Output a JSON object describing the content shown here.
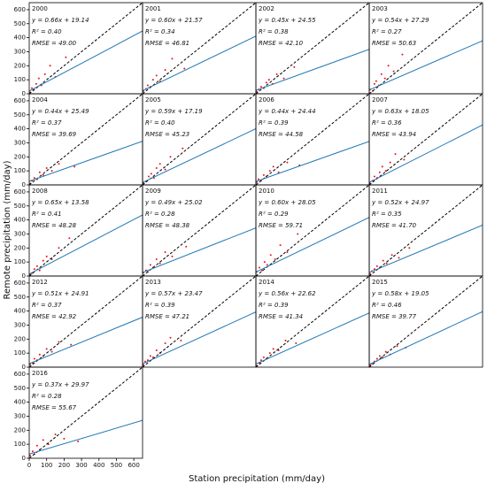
{
  "x_label": "Station precipitation (mm/day)",
  "y_label": "Remote precipitation (mm/day)",
  "chart_data": [
    {
      "type": "scatter",
      "title": "2000",
      "equation": "y = 0.66x + 19.14",
      "r2": "R² = 0.40",
      "rmse": "RMSE = 49.00",
      "slope": 0.66,
      "intercept": 19.14,
      "xlim": [
        0,
        650
      ],
      "ylim": [
        0,
        650
      ],
      "yticks": [
        0,
        100,
        200,
        300,
        400,
        500,
        600
      ],
      "x": [
        5,
        15,
        25,
        40,
        55,
        70,
        90,
        120,
        150,
        210
      ],
      "y": [
        10,
        40,
        30,
        70,
        110,
        60,
        140,
        200,
        120,
        260
      ]
    },
    {
      "type": "scatter",
      "title": "2001",
      "equation": "y = 0.60x + 21.57",
      "r2": "R² = 0.34",
      "rmse": "RMSE = 46.81",
      "slope": 0.6,
      "intercept": 21.57,
      "xlim": [
        0,
        650
      ],
      "ylim": [
        0,
        650
      ],
      "x": [
        5,
        20,
        30,
        45,
        60,
        80,
        100,
        130,
        170,
        240
      ],
      "y": [
        20,
        35,
        60,
        50,
        100,
        130,
        90,
        170,
        250,
        180
      ]
    },
    {
      "type": "scatter",
      "title": "2002",
      "equation": "y = 0.45x + 24.55",
      "r2": "R² = 0.38",
      "rmse": "RMSE = 42.10",
      "slope": 0.45,
      "intercept": 24.55,
      "xlim": [
        0,
        650
      ],
      "ylim": [
        0,
        650
      ],
      "x": [
        5,
        15,
        30,
        45,
        60,
        75,
        95,
        120,
        160,
        220
      ],
      "y": [
        15,
        30,
        50,
        40,
        80,
        100,
        70,
        140,
        110,
        190
      ]
    },
    {
      "type": "scatter",
      "title": "2003",
      "equation": "y = 0.54x + 27.29",
      "r2": "R² = 0.27",
      "rmse": "RMSE = 50.63",
      "slope": 0.54,
      "intercept": 27.29,
      "xlim": [
        0,
        650
      ],
      "ylim": [
        0,
        650
      ],
      "x": [
        5,
        20,
        30,
        40,
        55,
        70,
        90,
        110,
        140,
        190
      ],
      "y": [
        30,
        20,
        70,
        90,
        60,
        140,
        110,
        200,
        160,
        280
      ]
    },
    {
      "type": "scatter",
      "title": "2004",
      "equation": "y = 0.44x + 25.49",
      "r2": "R² = 0.37",
      "rmse": "RMSE = 39.69",
      "slope": 0.44,
      "intercept": 25.49,
      "xlim": [
        0,
        650
      ],
      "ylim": [
        0,
        650
      ],
      "yticks": [
        0,
        100,
        200,
        300,
        400,
        500,
        600
      ],
      "x": [
        5,
        15,
        30,
        45,
        60,
        80,
        100,
        130,
        170,
        260
      ],
      "y": [
        10,
        30,
        50,
        40,
        90,
        70,
        120,
        100,
        150,
        130
      ]
    },
    {
      "type": "scatter",
      "title": "2005",
      "equation": "y = 0.59x + 17.19",
      "r2": "R² = 0.40",
      "rmse": "RMSE = 45.23",
      "slope": 0.59,
      "intercept": 17.19,
      "xlim": [
        0,
        650
      ],
      "ylim": [
        0,
        650
      ],
      "x": [
        5,
        20,
        35,
        50,
        65,
        80,
        100,
        130,
        160,
        230
      ],
      "y": [
        15,
        25,
        60,
        80,
        50,
        120,
        150,
        110,
        200,
        260
      ]
    },
    {
      "type": "scatter",
      "title": "2006",
      "equation": "y = 0.44x + 24.44",
      "r2": "R² = 0.39",
      "rmse": "RMSE = 44.58",
      "slope": 0.44,
      "intercept": 24.44,
      "xlim": [
        0,
        650
      ],
      "ylim": [
        0,
        650
      ],
      "x": [
        5,
        15,
        30,
        45,
        60,
        80,
        100,
        130,
        180,
        250
      ],
      "y": [
        20,
        40,
        30,
        70,
        60,
        100,
        130,
        90,
        160,
        140
      ]
    },
    {
      "type": "scatter",
      "title": "2007",
      "equation": "y = 0.63x + 18.05",
      "r2": "R² = 0.36",
      "rmse": "RMSE = 43.94",
      "slope": 0.63,
      "intercept": 18.05,
      "xlim": [
        0,
        650
      ],
      "ylim": [
        0,
        650
      ],
      "x": [
        5,
        20,
        30,
        45,
        60,
        75,
        95,
        120,
        150,
        200
      ],
      "y": [
        10,
        30,
        60,
        50,
        90,
        130,
        100,
        160,
        220,
        180
      ]
    },
    {
      "type": "scatter",
      "title": "2008",
      "equation": "y = 0.65x + 13.58",
      "r2": "R² = 0.41",
      "rmse": "RMSE = 48.28",
      "slope": 0.65,
      "intercept": 13.58,
      "xlim": [
        0,
        650
      ],
      "ylim": [
        0,
        650
      ],
      "yticks": [
        0,
        100,
        200,
        300,
        400,
        500,
        600
      ],
      "x": [
        5,
        15,
        30,
        45,
        60,
        80,
        100,
        130,
        170,
        230
      ],
      "y": [
        10,
        20,
        50,
        70,
        40,
        110,
        140,
        120,
        200,
        270
      ]
    },
    {
      "type": "scatter",
      "title": "2009",
      "equation": "y = 0.49x + 25.02",
      "r2": "R² = 0.28",
      "rmse": "RMSE = 48.38",
      "slope": 0.49,
      "intercept": 25.02,
      "xlim": [
        0,
        650
      ],
      "ylim": [
        0,
        650
      ],
      "x": [
        5,
        20,
        30,
        45,
        60,
        80,
        100,
        130,
        170,
        250
      ],
      "y": [
        25,
        40,
        30,
        80,
        60,
        120,
        90,
        170,
        140,
        210
      ]
    },
    {
      "type": "scatter",
      "title": "2010",
      "equation": "y = 0.60x + 28.05",
      "r2": "R² = 0.29",
      "rmse": "RMSE = 59.71",
      "slope": 0.6,
      "intercept": 28.05,
      "xlim": [
        0,
        650
      ],
      "ylim": [
        0,
        650
      ],
      "x": [
        5,
        20,
        35,
        50,
        65,
        85,
        110,
        140,
        180,
        240
      ],
      "y": [
        30,
        60,
        40,
        100,
        80,
        150,
        120,
        220,
        170,
        300
      ]
    },
    {
      "type": "scatter",
      "title": "2011",
      "equation": "y = 0.52x + 24.97",
      "r2": "R² = 0.35",
      "rmse": "RMSE = 41.70",
      "slope": 0.52,
      "intercept": 24.97,
      "xlim": [
        0,
        650
      ],
      "ylim": [
        0,
        650
      ],
      "x": [
        5,
        15,
        30,
        45,
        60,
        80,
        100,
        130,
        170,
        230
      ],
      "y": [
        15,
        35,
        50,
        70,
        60,
        110,
        90,
        150,
        130,
        200
      ]
    },
    {
      "type": "scatter",
      "title": "2012",
      "equation": "y = 0.51x + 24.91",
      "r2": "R² = 0.37",
      "rmse": "RMSE = 42.92",
      "slope": 0.51,
      "intercept": 24.91,
      "xlim": [
        0,
        650
      ],
      "ylim": [
        0,
        650
      ],
      "yticks": [
        0,
        100,
        200,
        300,
        400,
        500,
        600
      ],
      "x": [
        5,
        20,
        30,
        45,
        60,
        80,
        100,
        130,
        170,
        240
      ],
      "y": [
        20,
        30,
        60,
        50,
        90,
        80,
        130,
        110,
        180,
        160
      ]
    },
    {
      "type": "scatter",
      "title": "2013",
      "equation": "y = 0.57x + 23.47",
      "r2": "R² = 0.39",
      "rmse": "RMSE = 47.21",
      "slope": 0.57,
      "intercept": 23.47,
      "xlim": [
        0,
        650
      ],
      "ylim": [
        0,
        650
      ],
      "x": [
        5,
        15,
        30,
        45,
        60,
        80,
        100,
        130,
        160,
        220
      ],
      "y": [
        15,
        40,
        50,
        80,
        70,
        120,
        100,
        170,
        210,
        190
      ]
    },
    {
      "type": "scatter",
      "title": "2014",
      "equation": "y = 0.56x + 22.62",
      "r2": "R² = 0.39",
      "rmse": "RMSE = 41.34",
      "slope": 0.56,
      "intercept": 22.62,
      "xlim": [
        0,
        650
      ],
      "ylim": [
        0,
        650
      ],
      "x": [
        5,
        20,
        30,
        45,
        60,
        80,
        100,
        130,
        170,
        230
      ],
      "y": [
        10,
        30,
        50,
        70,
        60,
        100,
        130,
        120,
        190,
        170
      ]
    },
    {
      "type": "scatter",
      "title": "2015",
      "equation": "y = 0.58x + 19.05",
      "r2": "R² = 0.46",
      "rmse": "RMSE = 39.77",
      "slope": 0.58,
      "intercept": 19.05,
      "xlim": [
        0,
        650
      ],
      "ylim": [
        0,
        650
      ],
      "x": [
        5,
        15,
        30,
        45,
        60,
        75,
        95,
        120,
        160,
        210
      ],
      "y": [
        15,
        25,
        40,
        60,
        80,
        70,
        110,
        90,
        150,
        140
      ]
    },
    {
      "type": "scatter",
      "title": "2016",
      "equation": "y = 0.37x + 29.97",
      "r2": "R² = 0.28",
      "rmse": "RMSE = 55.67",
      "slope": 0.37,
      "intercept": 29.97,
      "xlim": [
        0,
        650
      ],
      "ylim": [
        0,
        650
      ],
      "yticks": [
        0,
        100,
        200,
        300,
        400,
        500,
        600
      ],
      "xticks": [
        0,
        100,
        200,
        300,
        400,
        500,
        600
      ],
      "x": [
        5,
        20,
        30,
        45,
        60,
        80,
        110,
        150,
        200,
        280
      ],
      "y": [
        20,
        50,
        30,
        90,
        60,
        130,
        100,
        170,
        140,
        120
      ]
    }
  ]
}
